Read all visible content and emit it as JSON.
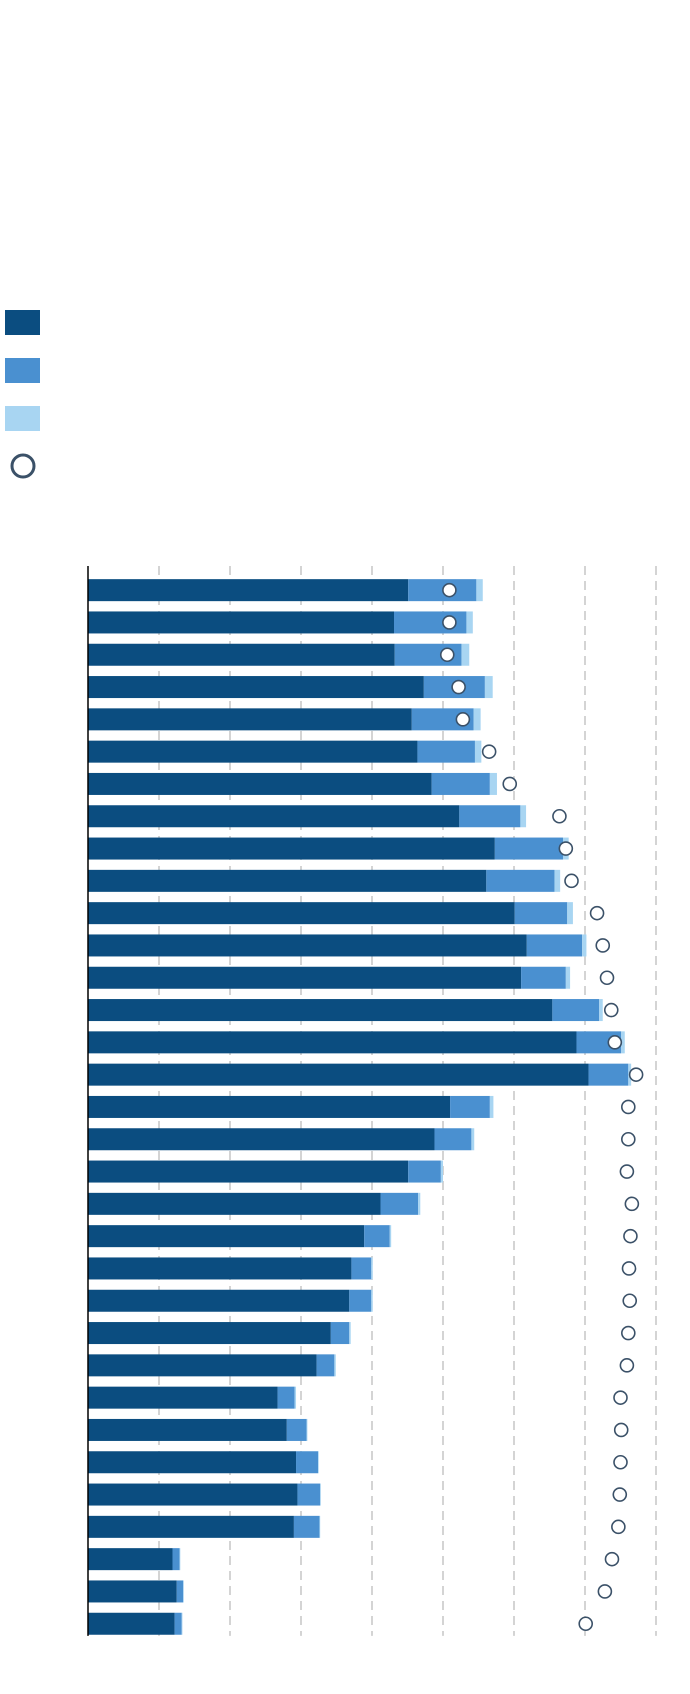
{
  "chart_data": {
    "type": "bar",
    "orientation": "horizontal",
    "stacked": true,
    "title": "",
    "xlabel": "",
    "ylabel": "",
    "categories": [
      "",
      "",
      "",
      "",
      "",
      "",
      "",
      "",
      "",
      "",
      "",
      "",
      "",
      "",
      "",
      "",
      "",
      "",
      "",
      "",
      "",
      "",
      "",
      "",
      "",
      "",
      "",
      "",
      "",
      "",
      "",
      "",
      ""
    ],
    "xlim": [
      0,
      80
    ],
    "x_gridlines": [
      10,
      20,
      30,
      40,
      50,
      60,
      70,
      80
    ],
    "grid": true,
    "legend_position": "top-left",
    "series": [
      {
        "name": "",
        "kind": "bar",
        "color": "#0b4d80",
        "values": [
          45.1,
          43.1,
          43.2,
          47.3,
          45.6,
          46.4,
          48.4,
          52.3,
          57.3,
          56.1,
          60.1,
          61.8,
          61.0,
          65.4,
          68.8,
          70.5,
          51.0,
          48.8,
          45.1,
          41.2,
          38.9,
          37.1,
          36.8,
          34.2,
          32.2,
          26.7,
          28.0,
          29.3,
          29.5,
          29.0,
          11.9,
          12.5,
          12.2
        ]
      },
      {
        "name": "",
        "kind": "bar",
        "color": "#4a90d0",
        "values": [
          9.6,
          10.2,
          9.4,
          8.6,
          8.7,
          8.1,
          8.2,
          8.6,
          9.6,
          9.6,
          7.4,
          7.8,
          6.3,
          6.6,
          6.3,
          5.6,
          5.6,
          5.2,
          4.6,
          5.3,
          3.6,
          2.8,
          3.1,
          2.6,
          2.5,
          2.4,
          2.8,
          3.1,
          3.2,
          3.6,
          1.0,
          0.9,
          1.0
        ]
      },
      {
        "name": "",
        "kind": "bar",
        "color": "#a8d5f2",
        "values": [
          0.9,
          0.9,
          1.1,
          1.1,
          1.0,
          0.9,
          1.0,
          0.8,
          0.8,
          0.8,
          0.8,
          0.6,
          0.6,
          0.5,
          0.5,
          0.4,
          0.5,
          0.4,
          0.3,
          0.3,
          0.2,
          0.2,
          0.2,
          0.2,
          0.2,
          0.2,
          0.1,
          0.1,
          0.1,
          0.1,
          0.1,
          0.1,
          0.1
        ]
      },
      {
        "name": "",
        "kind": "marker",
        "color": "#3b5168",
        "values": [
          50.9,
          50.9,
          50.6,
          52.2,
          52.8,
          56.5,
          59.4,
          66.4,
          67.3,
          68.1,
          71.7,
          72.5,
          73.1,
          73.7,
          74.2,
          77.2,
          76.1,
          76.1,
          75.9,
          76.6,
          76.4,
          76.2,
          76.3,
          76.1,
          75.9,
          75.0,
          75.1,
          75.0,
          74.9,
          74.7,
          73.8,
          72.8,
          70.1
        ]
      }
    ]
  }
}
